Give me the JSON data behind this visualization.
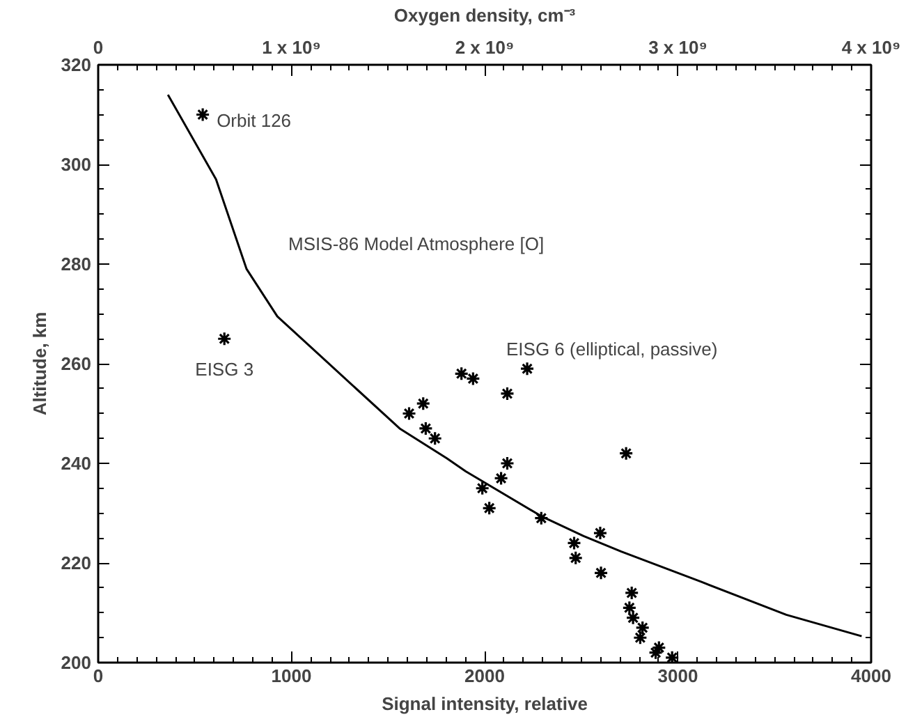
{
  "chart_data": {
    "type": "scatter",
    "xlabel": "Signal intensity, relative",
    "ylabel": "Altitude, km",
    "x2label": "Oxygen density, cm⁻³",
    "xlim": [
      0,
      4000
    ],
    "xticks": [
      0,
      1000,
      2000,
      3000,
      4000
    ],
    "ylim": [
      200,
      320
    ],
    "yticks": [
      200,
      220,
      240,
      260,
      280,
      300,
      320
    ],
    "x2lim": [
      0,
      4000000000
    ],
    "x2ticks": [
      {
        "value": 0,
        "label": "0"
      },
      {
        "value": 1000000000,
        "label": "1 x 10⁹"
      },
      {
        "value": 2000000000,
        "label": "2 x 10⁹"
      },
      {
        "value": 3000000000,
        "label": "3 x 10⁹"
      },
      {
        "value": 4000000000,
        "label": "4 x 10⁹"
      }
    ],
    "grid": false,
    "marker": "cross",
    "series": [
      {
        "color": "#000000",
        "x": [
          541,
          653,
          1609,
          1682,
          1695,
          1743,
          1880,
          1940,
          2220,
          2117,
          2732,
          2117,
          2085,
          1988,
          2024,
          2293,
          2463,
          2471,
          2598,
          2602,
          2761,
          2749,
          2768,
          2817,
          2805,
          2902,
          2885,
          2970
        ],
        "values": [
          310,
          265,
          250,
          252,
          247,
          245,
          258,
          257,
          259,
          254,
          242,
          240,
          237,
          235,
          231,
          229,
          224,
          221,
          226,
          218,
          214,
          211,
          209,
          207,
          205,
          203,
          202,
          201
        ]
      },
      {
        "type": "line",
        "color": "#000000",
        "line_style": "solid",
        "marker": "none",
        "x": [
          361,
          610,
          768,
          927,
          1560,
          1804,
          1902,
          2293,
          2512,
          2707,
          3122,
          3561,
          3951
        ],
        "values": [
          314,
          297,
          279,
          269.5,
          247,
          241,
          238.4,
          229.4,
          225.4,
          222.3,
          216.2,
          209.6,
          205.3
        ]
      }
    ],
    "annotations": [
      {
        "text": "Orbit 126",
        "x": 541,
        "y": 310
      },
      {
        "text": "EISG 3",
        "x": 653,
        "y": 265
      },
      {
        "text": "MSIS-86  Model Atmosphere  [O]",
        "x": 768,
        "y": 279
      },
      "EISG 6  (elliptical, passive)"
    ]
  }
}
